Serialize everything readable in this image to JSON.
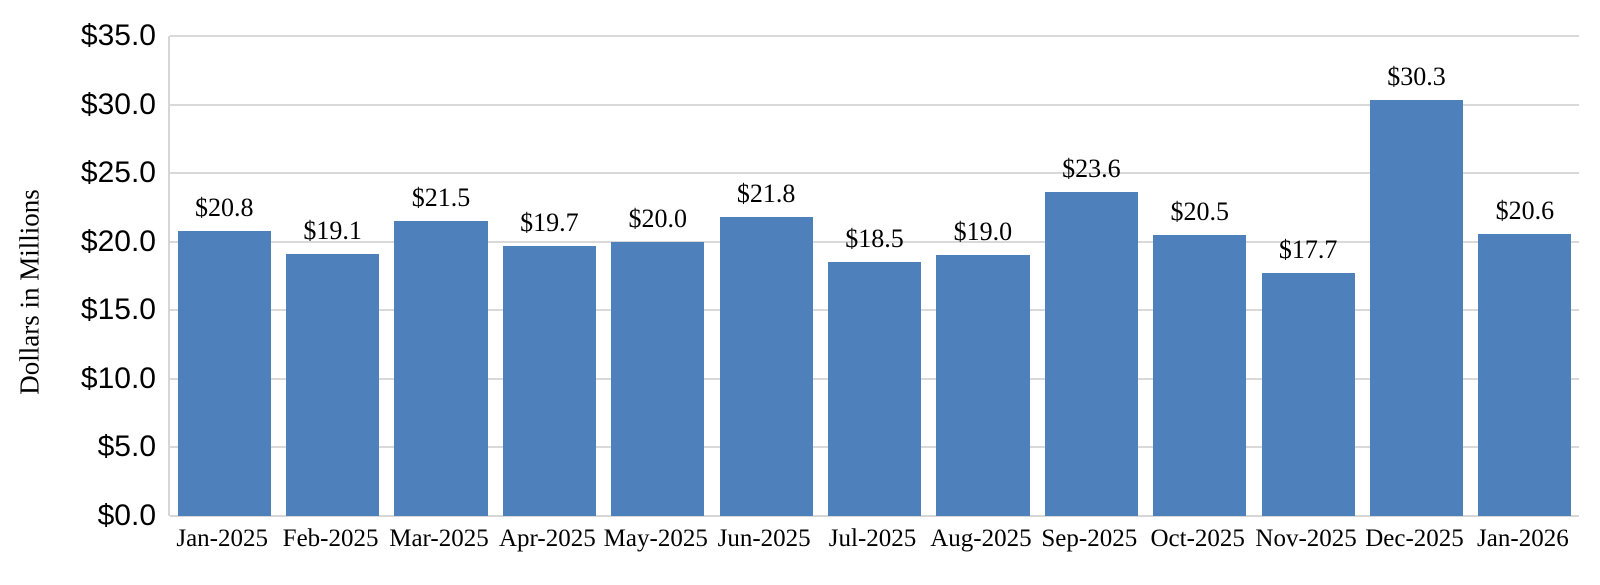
{
  "chart_data": {
    "type": "bar",
    "title": "",
    "categories": [
      "Jan-2025",
      "Feb-2025",
      "Mar-2025",
      "Apr-2025",
      "May-2025",
      "Jun-2025",
      "Jul-2025",
      "Aug-2025",
      "Sep-2025",
      "Oct-2025",
      "Nov-2025",
      "Dec-2025",
      "Jan-2026"
    ],
    "values": [
      20.8,
      19.1,
      21.5,
      19.7,
      20.0,
      21.8,
      18.5,
      19.0,
      23.6,
      20.5,
      17.7,
      30.3,
      20.6
    ],
    "data_labels": [
      "$20.8",
      "$19.1",
      "$21.5",
      "$19.7",
      "$20.0",
      "$21.8",
      "$18.5",
      "$19.0",
      "$23.6",
      "$20.5",
      "$17.7",
      "$30.3",
      "$20.6"
    ],
    "xlabel": "",
    "ylabel": "Dollars in Millions",
    "ylim": [
      0,
      35
    ],
    "y_tick_step": 5,
    "y_tick_labels": [
      "$0.0",
      "$5.0",
      "$10.0",
      "$15.0",
      "$20.0",
      "$25.0",
      "$30.0",
      "$35.0"
    ],
    "grid": "horizontal-only",
    "legend": "none",
    "colors": {
      "bar_fill": "#4e80bc",
      "gridline": "#d9d9d9",
      "axis_line": "#d6d6d6",
      "text": "#000000"
    }
  }
}
